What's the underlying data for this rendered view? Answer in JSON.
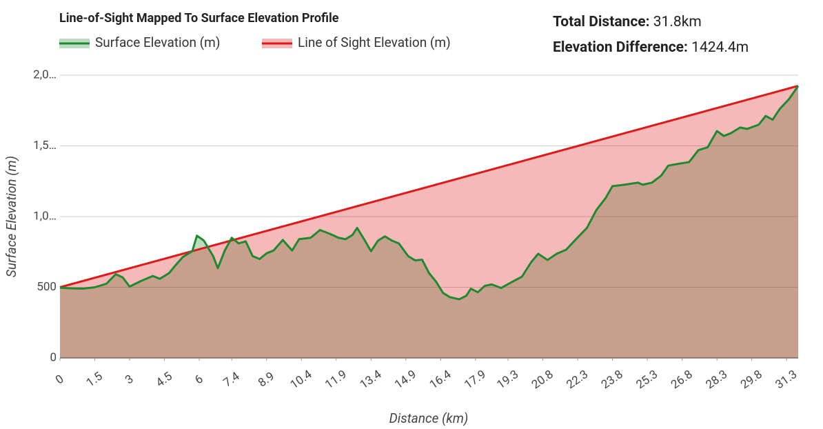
{
  "summary": [
    {
      "label": "Total Distance:",
      "value": "31.8km"
    },
    {
      "label": "Elevation Difference:",
      "value": "1424.4m"
    }
  ],
  "chart_data": {
    "type": "area",
    "title": "Line-of-Sight Mapped To Surface Elevation Profile",
    "x_label": "Distance (km)",
    "y_label": "Surface Elevation (m)",
    "xlim": [
      0,
      31.8
    ],
    "ylim": [
      0,
      2000
    ],
    "xticks": [
      0,
      1.5,
      3,
      4.5,
      6,
      7.4,
      8.9,
      10.4,
      11.9,
      13.4,
      14.9,
      16.4,
      17.9,
      19.3,
      20.8,
      22.3,
      23.8,
      25.3,
      26.8,
      28.3,
      29.8,
      31.3
    ],
    "yticks": [
      0,
      500,
      {
        "value": 1000,
        "label": "1,0…"
      },
      {
        "value": 1500,
        "label": "1,5…"
      },
      {
        "value": 2000,
        "label": "2,0…"
      }
    ],
    "grid": true,
    "series": [
      {
        "name": "Surface Elevation (m)",
        "color": "#1e8a2e",
        "x": [
          0,
          0.5,
          1,
          1.5,
          2,
          2.4,
          2.7,
          3,
          3.5,
          4,
          4.3,
          4.7,
          5,
          5.3,
          5.7,
          5.9,
          6.2,
          6.6,
          6.8,
          7.1,
          7.4,
          7.7,
          8,
          8.3,
          8.6,
          8.9,
          9.2,
          9.6,
          10,
          10.3,
          10.8,
          11.2,
          11.6,
          12,
          12.3,
          12.6,
          12.8,
          13.1,
          13.4,
          13.7,
          14,
          14.3,
          14.6,
          15,
          15.3,
          15.6,
          15.9,
          16.2,
          16.5,
          16.8,
          17.2,
          17.5,
          17.7,
          18,
          18.3,
          18.6,
          19,
          19.5,
          19.9,
          20.3,
          20.6,
          21,
          21.4,
          21.8,
          22.2,
          22.7,
          23.1,
          23.5,
          23.8,
          24.3,
          24.9,
          25.1,
          25.5,
          25.9,
          26.2,
          26.7,
          27.1,
          27.5,
          27.9,
          28.3,
          28.6,
          28.9,
          29.3,
          29.6,
          30.1,
          30.4,
          30.7,
          31,
          31.4,
          31.8
        ],
        "values": [
          497,
          492,
          490,
          500,
          525,
          592,
          570,
          505,
          545,
          580,
          560,
          600,
          660,
          715,
          755,
          865,
          830,
          720,
          635,
          760,
          850,
          810,
          825,
          720,
          700,
          740,
          760,
          835,
          760,
          840,
          850,
          905,
          880,
          850,
          840,
          870,
          920,
          840,
          755,
          830,
          860,
          830,
          810,
          720,
          690,
          695,
          600,
          540,
          460,
          430,
          415,
          440,
          490,
          465,
          510,
          520,
          495,
          540,
          575,
          678,
          737,
          693,
          737,
          765,
          835,
          920,
          1045,
          1130,
          1215,
          1225,
          1240,
          1225,
          1240,
          1290,
          1360,
          1375,
          1385,
          1470,
          1490,
          1605,
          1570,
          1590,
          1630,
          1620,
          1650,
          1712,
          1685,
          1760,
          1830,
          1924
        ]
      },
      {
        "name": "Line of Sight Elevation (m)",
        "color": "#e01818",
        "x": [
          0,
          31.8
        ],
        "values": [
          500,
          1924.4
        ]
      }
    ]
  }
}
